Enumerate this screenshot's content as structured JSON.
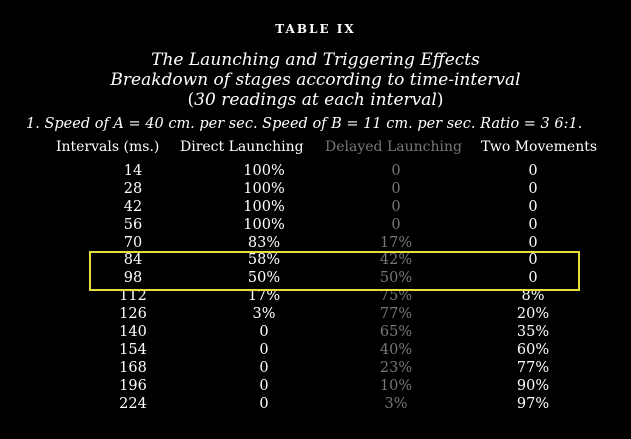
{
  "table_label": "TABLE IX",
  "title_line1": "The Launching and Triggering Effects",
  "title_line2": "Breakdown of stages according to time-interval",
  "title_line3_open": "(",
  "title_line3_text": "30 readings at each interval",
  "title_line3_close": ")",
  "speed_line": "1. Speed of A = 40 cm. per sec. Speed of B = 11 cm. per sec. Ratio = 3 6:1.",
  "columns": {
    "interval": "Intervals (ms.)",
    "direct": "Direct Launching",
    "delayed": "Delayed Launching",
    "two": "Two Movements"
  },
  "colors": {
    "highlight_border": "#e6de3c",
    "dim_text": "#777777"
  },
  "highlighted_rows": [
    "84",
    "98"
  ],
  "rows": [
    {
      "interval": "14",
      "direct": "100%",
      "delayed": "0",
      "two": "0"
    },
    {
      "interval": "28",
      "direct": "100%",
      "delayed": "0",
      "two": "0"
    },
    {
      "interval": "42",
      "direct": "100%",
      "delayed": "0",
      "two": "0"
    },
    {
      "interval": "56",
      "direct": "100%",
      "delayed": "0",
      "two": "0"
    },
    {
      "interval": "70",
      "direct": "83%",
      "delayed": "17%",
      "two": "0"
    },
    {
      "interval": "84",
      "direct": "58%",
      "delayed": "42%",
      "two": "0"
    },
    {
      "interval": "98",
      "direct": "50%",
      "delayed": "50%",
      "two": "0"
    },
    {
      "interval": "112",
      "direct": "17%",
      "delayed": "75%",
      "two": "8%"
    },
    {
      "interval": "126",
      "direct": "3%",
      "delayed": "77%",
      "two": "20%"
    },
    {
      "interval": "140",
      "direct": "0",
      "delayed": "65%",
      "two": "35%"
    },
    {
      "interval": "154",
      "direct": "0",
      "delayed": "40%",
      "two": "60%"
    },
    {
      "interval": "168",
      "direct": "0",
      "delayed": "23%",
      "two": "77%"
    },
    {
      "interval": "196",
      "direct": "0",
      "delayed": "10%",
      "two": "90%"
    },
    {
      "interval": "224",
      "direct": "0",
      "delayed": "3%",
      "two": "97%"
    }
  ]
}
